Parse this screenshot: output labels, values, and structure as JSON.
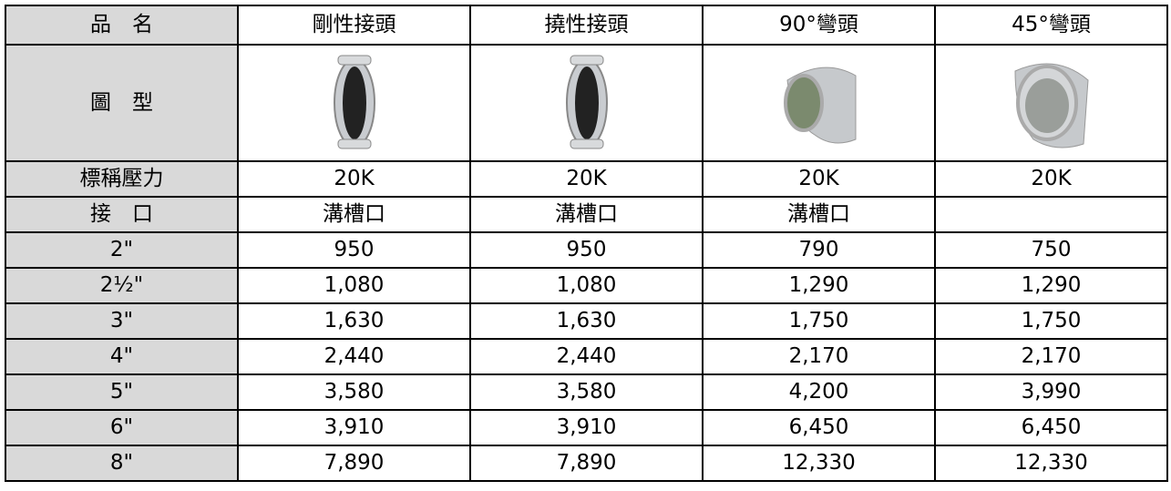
{
  "table": {
    "header": [
      "品　名",
      "剛性接頭",
      "撓性接頭",
      "90°彎頭",
      "45°彎頭"
    ],
    "image_row_label": "圖　型",
    "rows": [
      [
        "標稱壓力",
        "20K",
        "20K",
        "20K",
        "20K"
      ],
      [
        "接　口",
        "溝槽口",
        "溝槽口",
        "溝槽口"
      ],
      [
        "2\"",
        "950",
        "950",
        "790",
        "750"
      ],
      [
        "2½\"",
        "1,080",
        "1,080",
        "1,290",
        "1,290"
      ],
      [
        "3\"",
        "1,630",
        "1,630",
        "1,750",
        "1,750"
      ],
      [
        "4\"",
        "2,440",
        "2,440",
        "2,170",
        "2,170"
      ],
      [
        "5\"",
        "3,580",
        "3,580",
        "4,200",
        "3,990"
      ],
      [
        "6\"",
        "3,910",
        "3,910",
        "6,450",
        "6,450"
      ],
      [
        "8\"",
        "7,890",
        "7,890",
        "12,330",
        "12,330"
      ]
    ]
  }
}
